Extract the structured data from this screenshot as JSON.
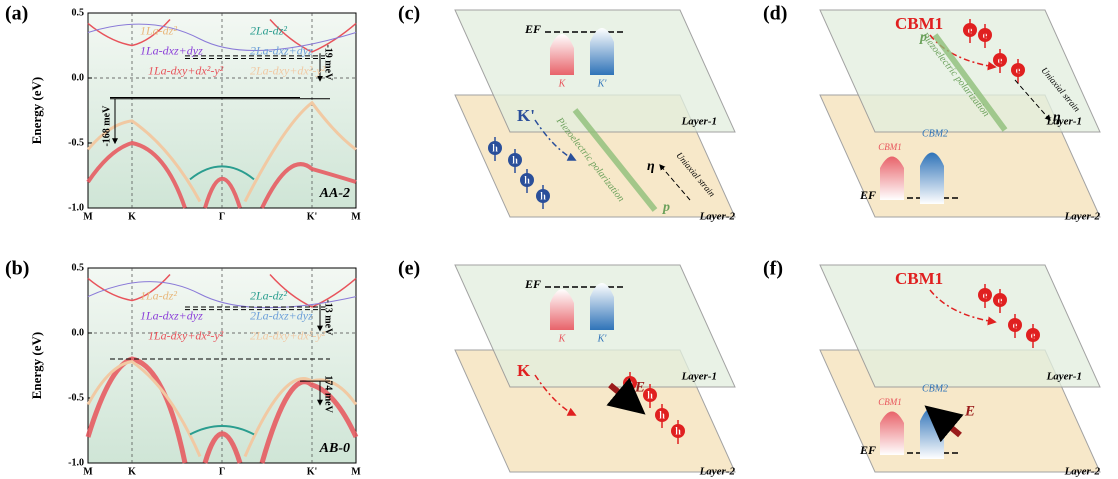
{
  "panels": {
    "a": {
      "label": "(a)",
      "y_label": "Energy (eV)",
      "ylim": [
        -1,
        0.5
      ],
      "yticks": [
        {
          "value": 0.5,
          "label": "0.5"
        },
        {
          "value": 0,
          "label": "0.0"
        },
        {
          "value": -0.5,
          "label": "-0.5"
        },
        {
          "value": -1,
          "label": "-1.0"
        }
      ],
      "xticks": [
        "M",
        "K",
        "Γ",
        "K'",
        "M"
      ],
      "legend": [
        "1La-dz²",
        "2La-dz²",
        "1La-dxz+dyz",
        "2La-dxz+dyz",
        "1La-dxy+dx²-y²",
        "2La-dxy+dx²-y²"
      ],
      "annotations": [
        "-19 meV",
        "-168 meV"
      ],
      "stacking": "AA-2"
    },
    "b": {
      "label": "(b)",
      "y_label": "Energy (eV)",
      "ylim": [
        -1,
        0.5
      ],
      "yticks": [
        {
          "value": 0.5,
          "label": "0.5"
        },
        {
          "value": 0,
          "label": "0.0"
        },
        {
          "value": -0.5,
          "label": "-0.5"
        },
        {
          "value": -1,
          "label": "-1.0"
        }
      ],
      "xticks": [
        "M",
        "K",
        "Γ",
        "K'",
        "M"
      ],
      "legend": [
        "1La-dz²",
        "2La-dz²",
        "1La-dxz+dyz",
        "2La-dxz+dyz",
        "1La-dxy+dx²-y²",
        "2La-dxy+dx²-y²"
      ],
      "annotations": [
        "-13 meV",
        "174 meV"
      ],
      "stacking": "AB-0"
    },
    "c": {
      "label": "(c)",
      "fermi": "EF",
      "valleys": [
        "K",
        "K'"
      ],
      "layers": [
        "Layer-1",
        "Layer-2"
      ],
      "carrier": "K'",
      "particle": "h",
      "polarization": "Piezoelectric polarization",
      "strain": "Uniaxial strain",
      "p": "p",
      "eta": "η"
    },
    "d": {
      "label": "(d)",
      "fermi": "EF",
      "cbm": [
        "CBM1",
        "CBM2"
      ],
      "layers": [
        "Layer-1",
        "Layer-2"
      ],
      "carrier": "CBM1",
      "particle": "e",
      "polarization": "Piezoelectric polarization",
      "strain": "Uniaxial strain",
      "p": "p",
      "eta": "η"
    },
    "e": {
      "label": "(e)",
      "fermi": "EF",
      "valleys": [
        "K",
        "K'"
      ],
      "layers": [
        "Layer-1",
        "Layer-2"
      ],
      "carrier": "K",
      "particle": "h",
      "field": "E"
    },
    "f": {
      "label": "(f)",
      "fermi": "EF",
      "cbm": [
        "CBM1",
        "CBM2"
      ],
      "layers": [
        "Layer-1",
        "Layer-2"
      ],
      "carrier": "CBM1",
      "particle": "e",
      "field": "E"
    }
  }
}
